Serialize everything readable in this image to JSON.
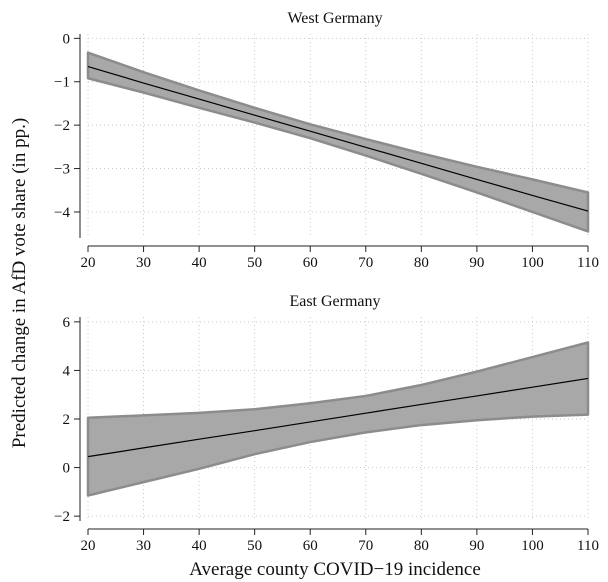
{
  "chart_data": {
    "type": "line",
    "ylabel": "Predicted change in AfD vote share (in pp.)",
    "xlabel": "Average county COVID−19 incidence",
    "panels": [
      {
        "title": "West Germany",
        "x": [
          20,
          30,
          40,
          50,
          60,
          70,
          80,
          90,
          100,
          110
        ],
        "estimate": [
          -0.65,
          -1.03,
          -1.4,
          -1.77,
          -2.14,
          -2.51,
          -2.88,
          -3.25,
          -3.62,
          -3.98
        ],
        "lower": [
          -0.92,
          -1.25,
          -1.6,
          -1.94,
          -2.3,
          -2.7,
          -3.12,
          -3.55,
          -4.0,
          -4.45
        ],
        "upper": [
          -0.33,
          -0.78,
          -1.2,
          -1.6,
          -1.98,
          -2.32,
          -2.65,
          -2.96,
          -3.25,
          -3.55
        ],
        "xlim": [
          20,
          110
        ],
        "ylim": [
          -4.6,
          0.1
        ],
        "xticks": [
          20,
          30,
          40,
          50,
          60,
          70,
          80,
          90,
          100,
          110
        ],
        "yticks": [
          0,
          -1,
          -2,
          -3,
          -4
        ],
        "ytick_labels": [
          "0",
          "−1",
          "−2",
          "−3",
          "−4"
        ],
        "grid": true
      },
      {
        "title": "East Germany",
        "x": [
          20,
          30,
          40,
          50,
          60,
          70,
          80,
          90,
          100,
          110
        ],
        "estimate": [
          0.45,
          0.81,
          1.17,
          1.52,
          1.88,
          2.24,
          2.6,
          2.95,
          3.31,
          3.67
        ],
        "lower": [
          -1.15,
          -0.6,
          -0.05,
          0.55,
          1.05,
          1.45,
          1.75,
          1.95,
          2.1,
          2.18
        ],
        "upper": [
          2.05,
          2.15,
          2.25,
          2.4,
          2.65,
          2.95,
          3.4,
          3.95,
          4.55,
          5.15
        ],
        "xlim": [
          20,
          110
        ],
        "ylim": [
          -2.2,
          6.2
        ],
        "xticks": [
          20,
          30,
          40,
          50,
          60,
          70,
          80,
          90,
          100,
          110
        ],
        "yticks": [
          6,
          4,
          2,
          0,
          -2
        ],
        "ytick_labels": [
          "6",
          "4",
          "2",
          "0",
          "−2"
        ],
        "grid": true
      }
    ]
  }
}
